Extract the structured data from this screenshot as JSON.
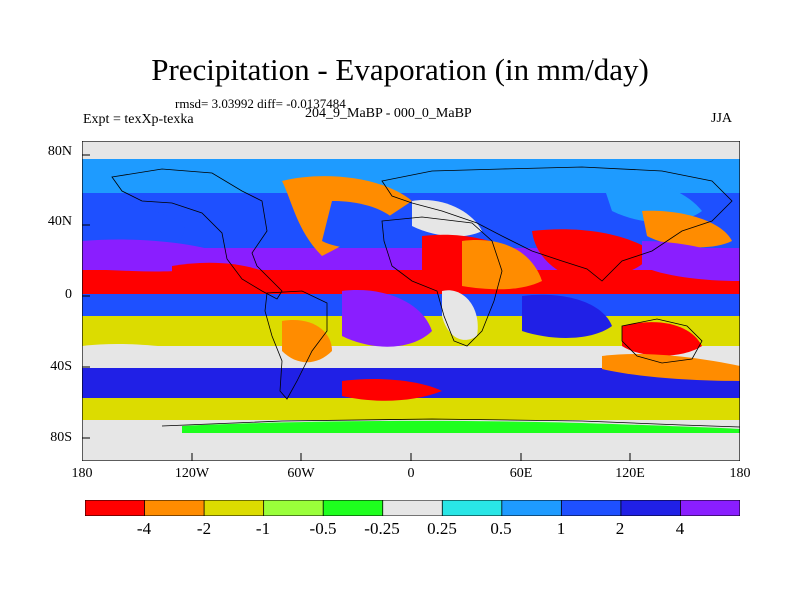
{
  "title": "Precipitation - Evaporation (in mm/day)",
  "stats": "rmsd= 3.03992 diff= -0.0137484",
  "experiment": "Expt = texXp-texka",
  "subtitle": "204_9_MaBP - 000_0_MaBP",
  "season": "JJA",
  "y_axis": {
    "labels": [
      "80N",
      "40N",
      "0",
      "40S",
      "80S"
    ]
  },
  "x_axis": {
    "labels": [
      "180",
      "120W",
      "60W",
      "0",
      "60E",
      "120E",
      "180"
    ]
  },
  "colorbar": {
    "labels": [
      "-4",
      "-2",
      "-1",
      "-0.5",
      "-0.25",
      "0.25",
      "0.5",
      "1",
      "2",
      "4"
    ],
    "colors": [
      "#ff0000",
      "#ff8c00",
      "#dcdc00",
      "#9aff3a",
      "#1eff1e",
      "#e6e6e6",
      "#29e6e6",
      "#1e9bff",
      "#1e50ff",
      "#2020e6",
      "#8a1eff"
    ]
  },
  "palette": {
    "neg_strong": "#ff0000",
    "neg": "#ff8c00",
    "neg_weak": "#dcdc00",
    "near_zero": "#e6e6e6",
    "pos_weak": "#1eff1e",
    "pos": "#1e50ff",
    "pos_strong": "#8a1eff"
  }
}
